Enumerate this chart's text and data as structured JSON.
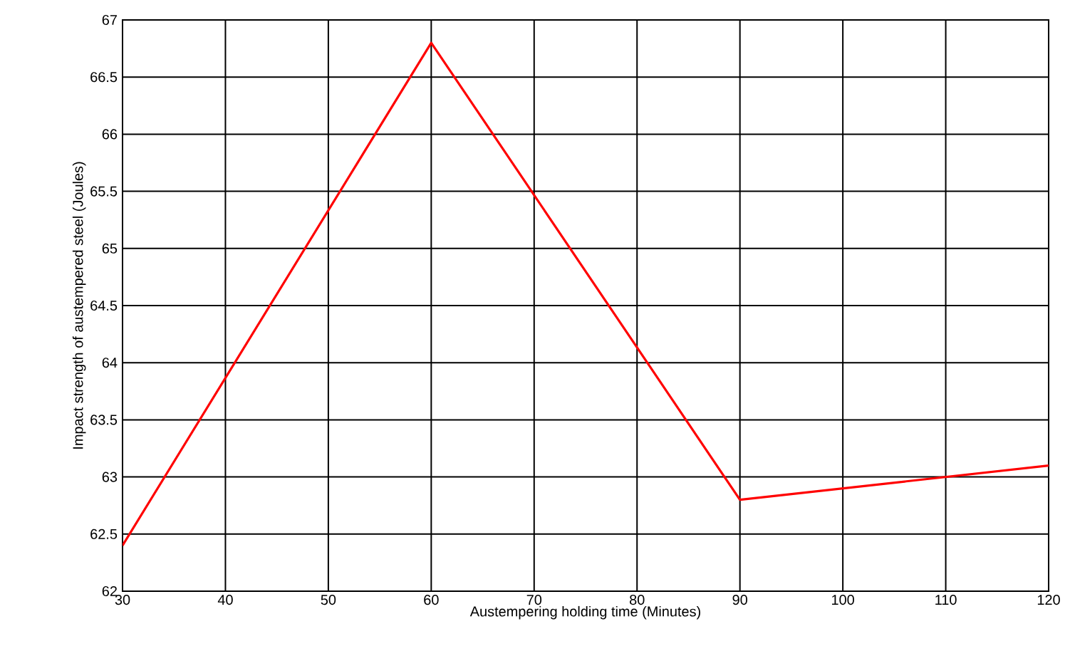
{
  "chart_data": {
    "type": "line",
    "xlabel": "Austempering holding time (Minutes)",
    "ylabel": "Impact strength of austempered steel (Joules)",
    "x": [
      30,
      60,
      90,
      120
    ],
    "series": [
      {
        "color": "#ff0000",
        "values": [
          62.4,
          66.8,
          62.8,
          63.1
        ]
      }
    ],
    "xlim": [
      30,
      120
    ],
    "xticks": [
      30,
      40,
      50,
      60,
      70,
      80,
      90,
      100,
      110,
      120
    ],
    "ylim": [
      62,
      67
    ],
    "yticks": [
      62,
      62.5,
      63,
      63.5,
      64,
      64.5,
      65,
      65.5,
      66,
      66.5,
      67
    ],
    "grid": true,
    "marker": "none",
    "line_style": "solid"
  }
}
